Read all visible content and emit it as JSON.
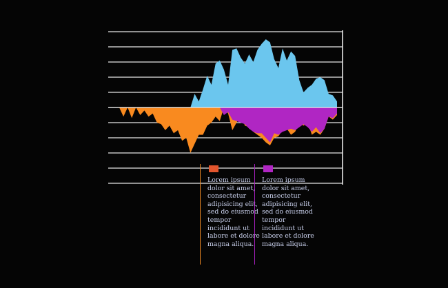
{
  "chart_data": {
    "type": "area",
    "title": "",
    "xlabel": "",
    "ylabel": "",
    "grid": true,
    "ylim": [
      -5,
      5
    ],
    "x_count": 53,
    "series": [
      {
        "color": "#6bc6ee",
        "values": [
          0,
          0,
          0,
          0,
          0,
          0,
          0,
          0,
          0,
          0,
          0,
          0,
          0,
          0,
          0,
          0,
          0,
          0,
          0.9,
          0.4,
          1.2,
          2.1,
          1.5,
          2.9,
          3.1,
          2.5,
          1.5,
          3.8,
          3.9,
          3.3,
          2.9,
          3.5,
          3.0,
          3.8,
          4.2,
          4.5,
          4.3,
          3.2,
          2.6,
          3.9,
          3.1,
          3.7,
          3.4,
          1.8,
          1.0,
          1.3,
          1.5,
          1.9,
          2.0,
          1.8,
          0.9,
          0.8,
          0.4
        ]
      },
      {
        "color": "#f98a1f",
        "values": [
          0,
          -0.6,
          0,
          -0.7,
          0,
          -0.5,
          -0.2,
          -0.6,
          -0.4,
          -1.0,
          -1.1,
          -1.5,
          -1.2,
          -1.7,
          -1.5,
          -2.2,
          -2.0,
          -3.0,
          -2.4,
          -1.8,
          -1.8,
          -1.2,
          -1.0,
          -0.6,
          -0.9,
          0,
          -0.4,
          -1.5,
          -1.0,
          -0.5,
          -1.2,
          -1.3,
          -1.6,
          -1.8,
          -2.0,
          -2.3,
          -2.5,
          -2.0,
          -1.9,
          -1.5,
          -1.4,
          -1.8,
          -1.6,
          -1.0,
          -1.2,
          -1.0,
          -1.8,
          -1.6,
          -1.8,
          -1.4,
          -0.6,
          -0.8,
          -0.5
        ]
      },
      {
        "color": "#b026c3",
        "values": [
          0,
          0,
          0,
          0,
          0,
          0,
          0,
          0,
          0,
          0,
          0,
          0,
          0,
          0,
          0,
          0,
          0,
          0,
          0,
          0,
          0,
          0,
          0,
          0,
          0,
          -0.5,
          -0.3,
          -0.8,
          -0.9,
          -1.0,
          -1.1,
          -1.4,
          -1.6,
          -1.7,
          -1.7,
          -2.0,
          -2.3,
          -1.7,
          -1.8,
          -1.6,
          -1.5,
          -1.4,
          -1.5,
          -1.3,
          -1.1,
          -1.3,
          -1.6,
          -1.3,
          -1.7,
          -1.4,
          -0.6,
          -0.7,
          -0.4
        ]
      }
    ],
    "legend": [
      {
        "color": "#e2552d",
        "line_color": "#f08a24",
        "text": "Lorem ipsum dolor sit amet, consectetur adipisicing elit, sed do eiusmod tempor incididunt ut labore et dolore magna aliqua."
      },
      {
        "color": "#b026c3",
        "line_color": "#a91fc2",
        "text": "Lorem ipsum dolor sit amet, consectetur adipisicing elit, sed do eiusmod tempor incididunt ut labore et dolore magna aliqua."
      }
    ]
  }
}
